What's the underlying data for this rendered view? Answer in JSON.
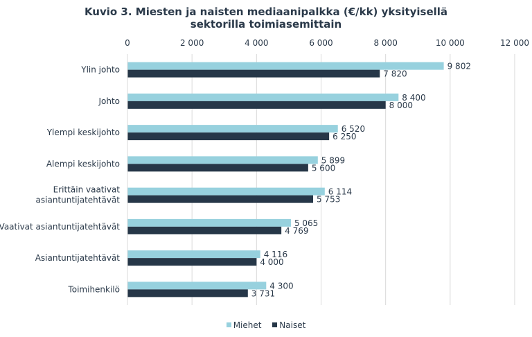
{
  "chart_data": {
    "type": "bar",
    "orientation": "horizontal",
    "title": "Kuvio 3. Miesten ja naisten mediaanipalkka (€/kk) yksityisellä sektorilla toimiasemittain",
    "xlabel": "",
    "ylabel": "",
    "xlim": [
      0,
      12000
    ],
    "x_ticks": [
      0,
      2000,
      4000,
      6000,
      8000,
      10000,
      12000
    ],
    "x_tick_labels": [
      "0",
      "2 000",
      "4 000",
      "6 000",
      "8 000",
      "10 000",
      "12 000"
    ],
    "x_axis_position": "top",
    "grid": true,
    "legend_position": "bottom",
    "categories": [
      "Ylin johto",
      "Johto",
      "Ylempi keskijohto",
      "Alempi keskijohto",
      "Erittäin vaativat asiantuntijatehtävät",
      "Vaativat asiantuntijatehtävät",
      "Asiantuntijatehtävät",
      "Toimihenkilö"
    ],
    "series": [
      {
        "name": "Miehet",
        "color": "#97d1de",
        "values": [
          9802,
          8400,
          6520,
          5899,
          6114,
          5065,
          4116,
          4300
        ],
        "labels": [
          "9 802",
          "8 400",
          "6 520",
          "5 899",
          "6 114",
          "5 065",
          "4 116",
          "4 300"
        ]
      },
      {
        "name": "Naiset",
        "color": "#263748",
        "values": [
          7820,
          8000,
          6250,
          5600,
          5753,
          4769,
          4000,
          3731
        ],
        "labels": [
          "7 820",
          "8 000",
          "6 250",
          "5 600",
          "5 753",
          "4 769",
          "4 000",
          "3 731"
        ]
      }
    ]
  }
}
